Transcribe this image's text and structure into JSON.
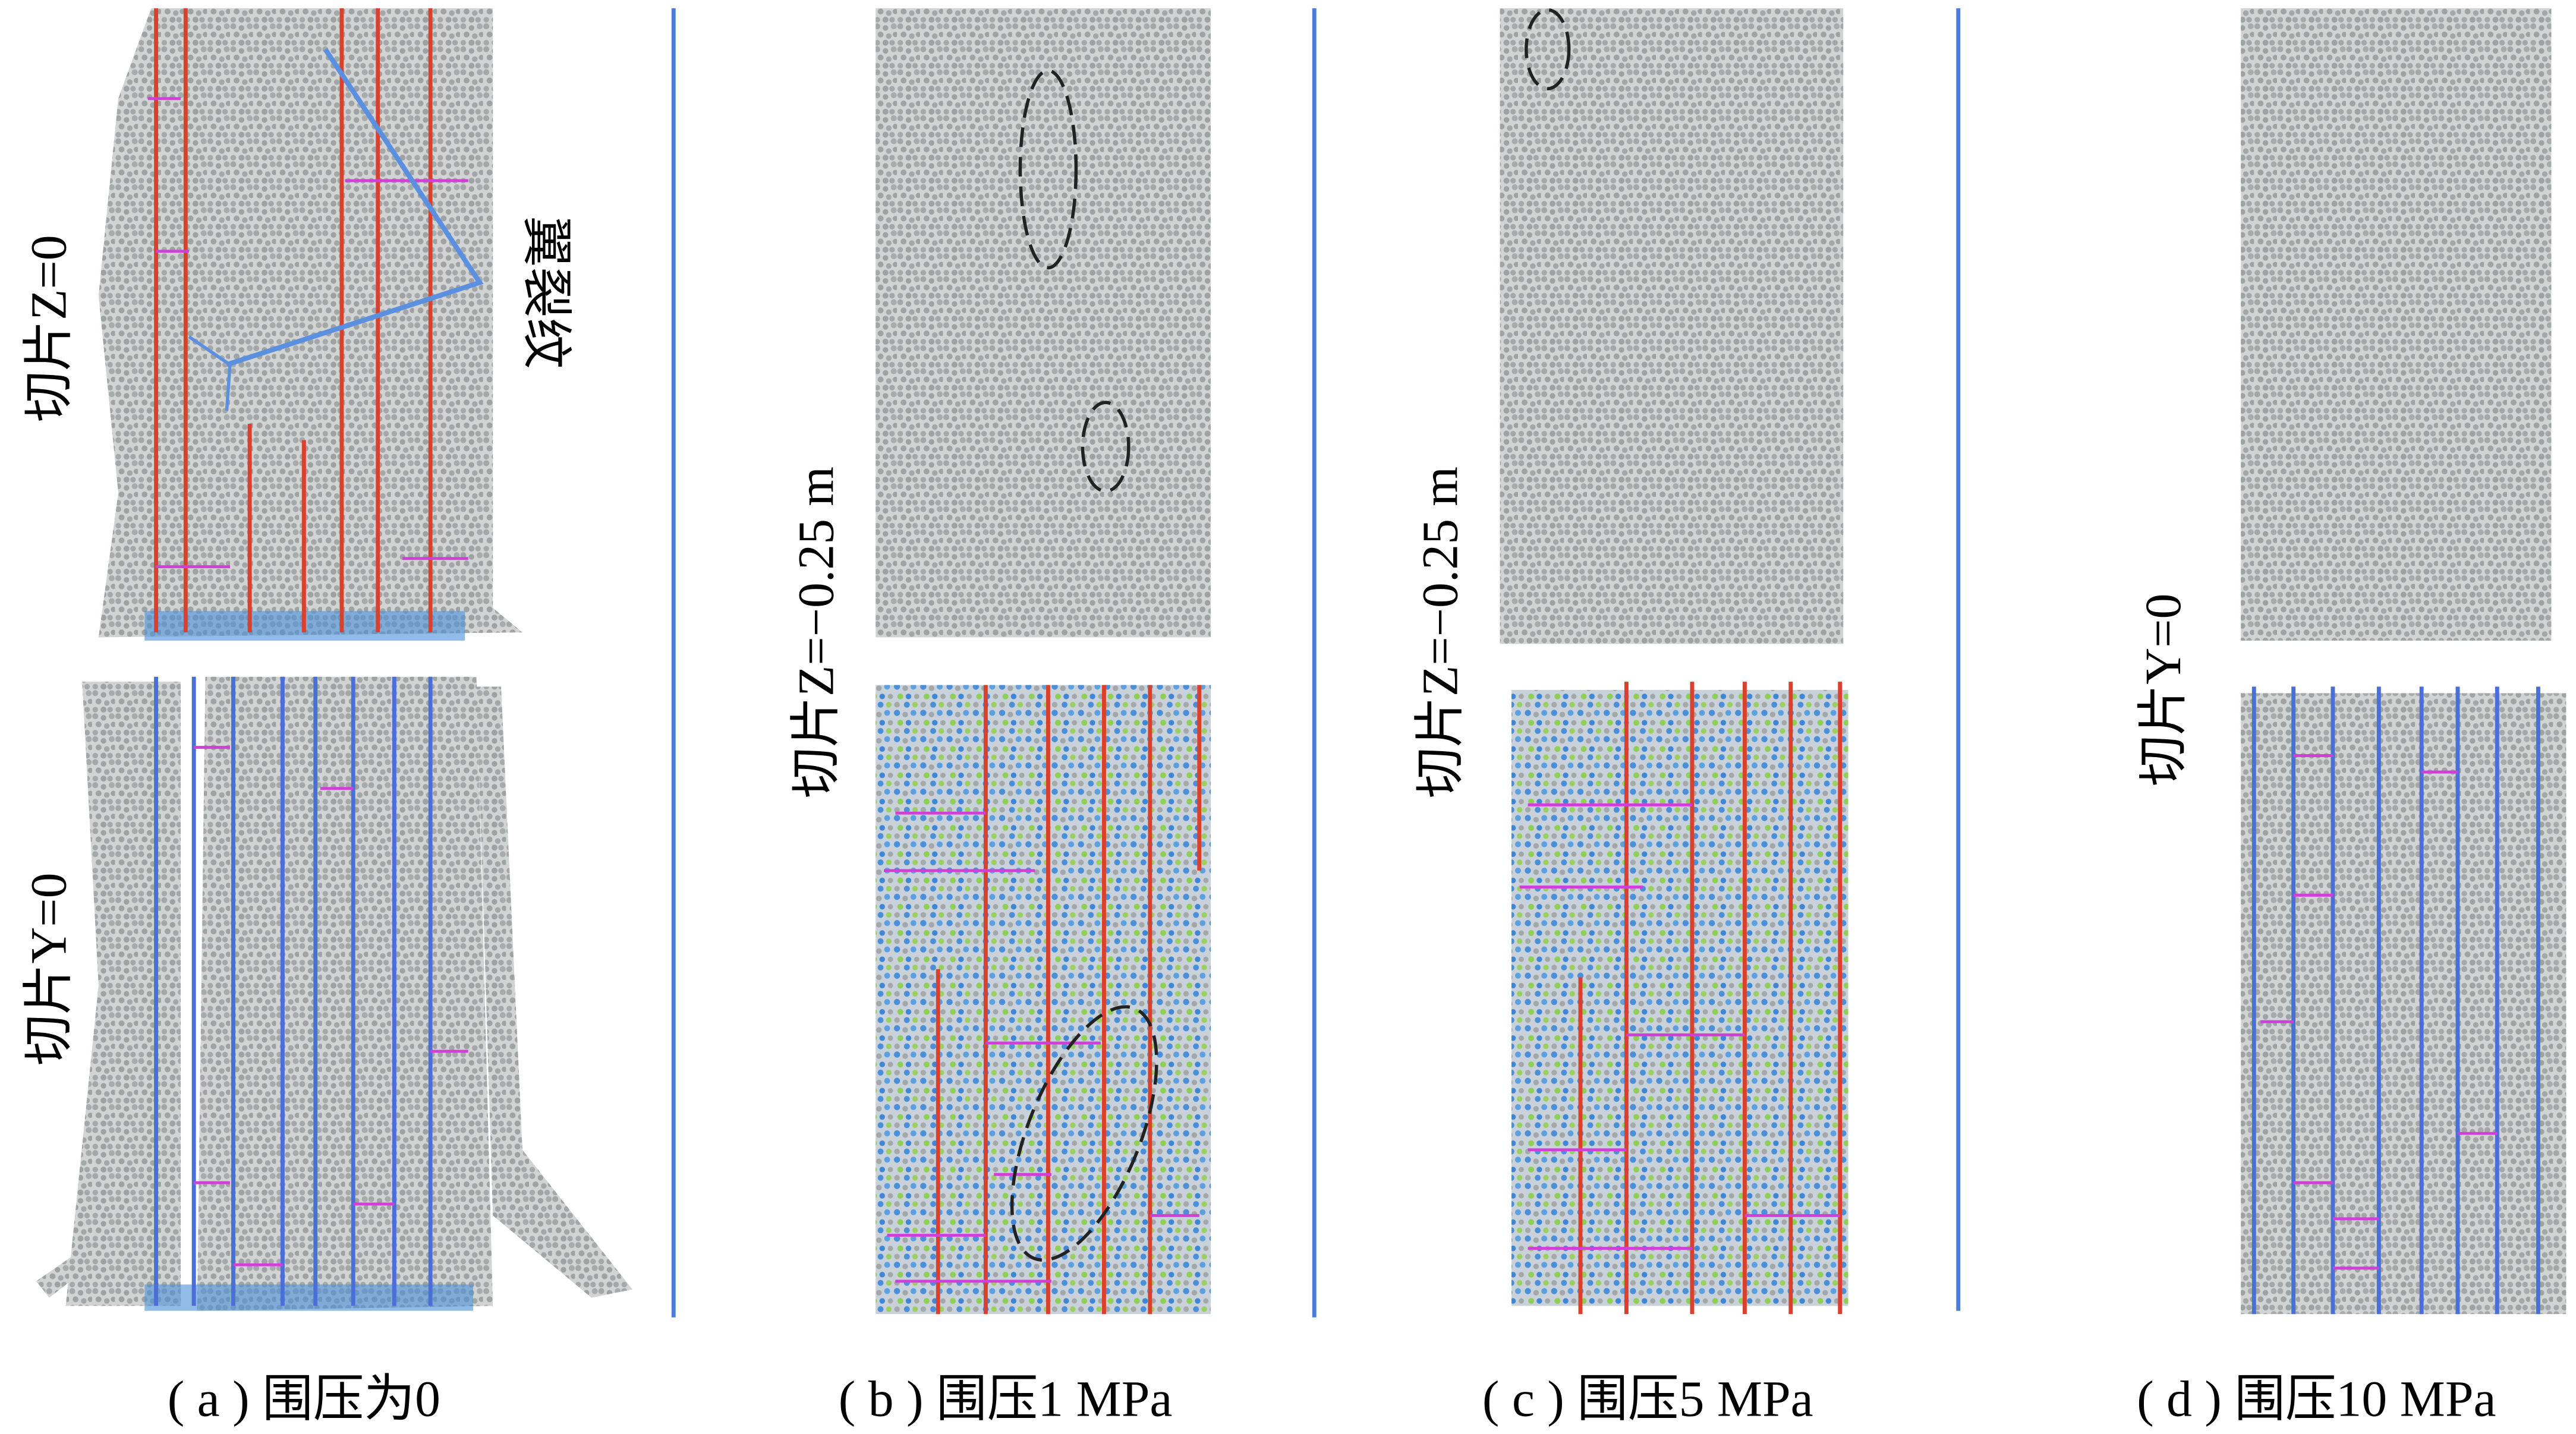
{
  "panels": [
    {
      "caption": "( a ) 围压为0",
      "slices": [
        "切片Z=0",
        "切片Y=0"
      ],
      "annotation": "翼裂纹"
    },
    {
      "caption": "( b ) 围压1 MPa",
      "slices": [
        "切片Z=−0.25 m"
      ]
    },
    {
      "caption": "( c ) 围压5 MPa",
      "slices": [
        "切片Z=−0.25 m"
      ]
    },
    {
      "caption": "( d ) 围压10 MPa",
      "slices": [
        "切片Y=0"
      ]
    }
  ]
}
